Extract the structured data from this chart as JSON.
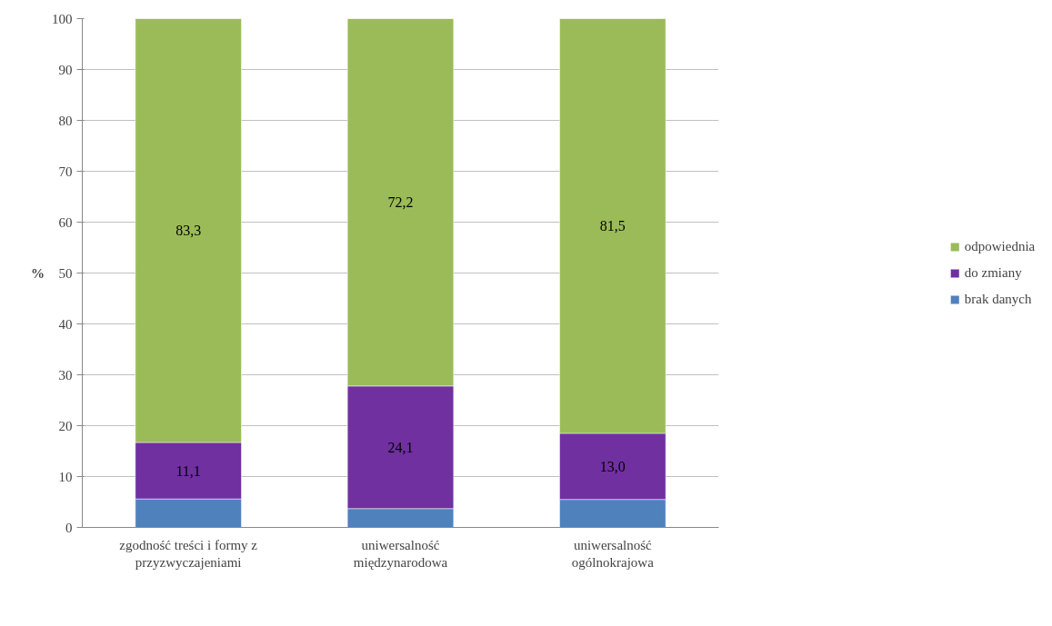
{
  "chart_data": {
    "type": "bar",
    "stacked": true,
    "ylabel": "%",
    "categories": [
      "zgodność treści i formy z\nprzyzwyczajeniami",
      "uniwersalność\nmiędzynarodowa",
      "uniwersalność\nogólnokrajowa"
    ],
    "series": [
      {
        "name": "brak danych",
        "color": "#4f81bd",
        "values": [
          5.6,
          3.7,
          5.5
        ]
      },
      {
        "name": "do zmiany",
        "color": "#7030a0",
        "values": [
          11.1,
          24.1,
          13.0
        ],
        "value_labels": [
          "11,1",
          "24,1",
          "13,0"
        ]
      },
      {
        "name": "odpowiednia",
        "color": "#9bbb59",
        "values": [
          83.3,
          72.2,
          81.5
        ],
        "value_labels": [
          "83,3",
          "72,2",
          "81,5"
        ]
      }
    ],
    "ylim": [
      0,
      100
    ],
    "yticks": [
      0,
      10,
      20,
      30,
      40,
      50,
      60,
      70,
      80,
      90,
      100
    ],
    "grid": "y",
    "legend": "right"
  }
}
